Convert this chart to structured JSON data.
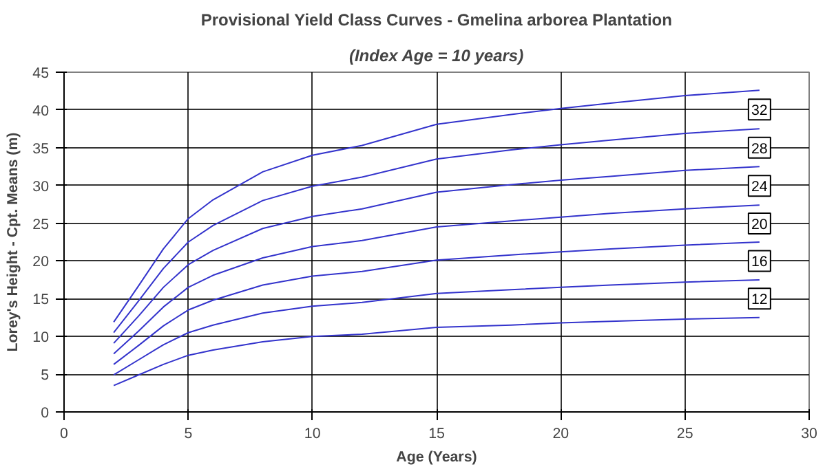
{
  "chart_data": {
    "type": "line",
    "title": "Provisional Yield Class Curves - Gmelina arborea Plantation",
    "subtitle": "(Index Age = 10 years)",
    "xlabel": "Age (Years)",
    "ylabel": "Lorey's Height - Cpt. Means (m)",
    "x": [
      2,
      3,
      4,
      5,
      6,
      8,
      10,
      12,
      15,
      18,
      20,
      22,
      25,
      28
    ],
    "series": [
      {
        "color": "#3333cc",
        "values": [
          11.9,
          16.7,
          21.6,
          25.6,
          28.1,
          31.8,
          34.0,
          35.3,
          38.1,
          39.4,
          40.2,
          40.9,
          41.9,
          42.6
        ]
      },
      {
        "color": "#3333cc",
        "values": [
          10.5,
          14.7,
          19.0,
          22.5,
          24.7,
          28.0,
          29.9,
          31.1,
          33.5,
          34.7,
          35.4,
          36.0,
          36.9,
          37.5
        ]
      },
      {
        "color": "#3333cc",
        "values": [
          9.1,
          12.7,
          16.5,
          19.5,
          21.4,
          24.3,
          25.9,
          26.9,
          29.1,
          30.1,
          30.7,
          31.2,
          32.0,
          32.5
        ]
      },
      {
        "color": "#3333cc",
        "values": [
          7.7,
          10.7,
          13.9,
          16.5,
          18.1,
          20.4,
          21.9,
          22.7,
          24.5,
          25.3,
          25.8,
          26.3,
          26.9,
          27.4
        ]
      },
      {
        "color": "#3333cc",
        "values": [
          6.3,
          8.8,
          11.4,
          13.5,
          14.8,
          16.8,
          18.0,
          18.6,
          20.1,
          20.8,
          21.2,
          21.6,
          22.1,
          22.5
        ]
      },
      {
        "color": "#3333cc",
        "values": [
          4.9,
          6.9,
          8.9,
          10.5,
          11.5,
          13.1,
          14.0,
          14.5,
          15.7,
          16.2,
          16.5,
          16.8,
          17.2,
          17.5
        ]
      },
      {
        "color": "#3333cc",
        "values": [
          3.5,
          4.9,
          6.3,
          7.5,
          8.2,
          9.3,
          10.0,
          10.3,
          11.2,
          11.5,
          11.8,
          12.0,
          12.3,
          12.5
        ]
      }
    ],
    "annotations": [
      "32",
      "28",
      "24",
      "20",
      "16",
      "12"
    ],
    "xlim": [
      0,
      30
    ],
    "ylim": [
      0,
      45
    ],
    "xticks": [
      0,
      5,
      10,
      15,
      20,
      25,
      30
    ],
    "yticks": [
      0,
      5,
      10,
      15,
      20,
      25,
      30,
      35,
      40,
      45
    ],
    "grid": true,
    "marker": "none",
    "line_style": "solid"
  }
}
